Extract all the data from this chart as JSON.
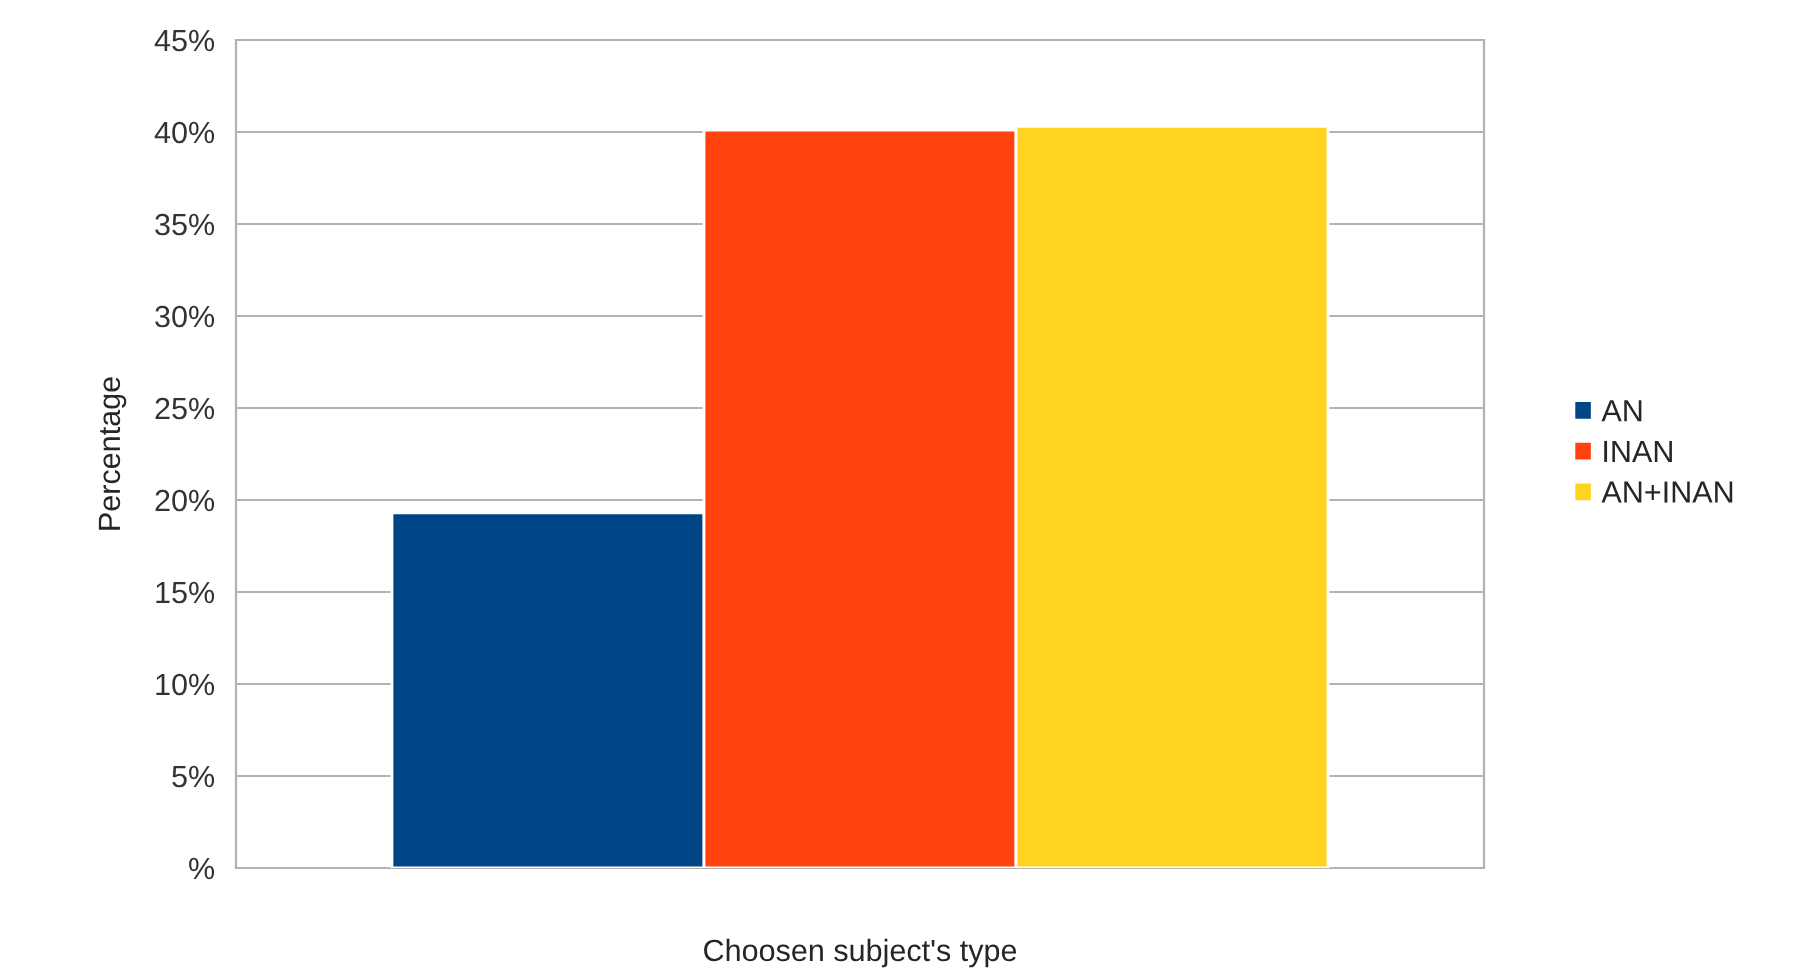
{
  "chart_data": {
    "type": "bar",
    "xlabel": "Choosen subject's type",
    "ylabel": "Percentage",
    "categories": [
      null
    ],
    "series": [
      {
        "name": "AN",
        "color": "#004586",
        "values": [
          19.3
        ]
      },
      {
        "name": "INAN",
        "color": "#ff420e",
        "values": [
          40.1
        ]
      },
      {
        "name": "AN+INAN",
        "color": "#ffd320",
        "values": [
          40.3
        ]
      }
    ],
    "ylim": [
      0,
      45
    ],
    "yticks": [
      {
        "value": 0,
        "label": "%"
      },
      {
        "value": 5,
        "label": "5%"
      },
      {
        "value": 10,
        "label": "10%"
      },
      {
        "value": 15,
        "label": "15%"
      },
      {
        "value": 20,
        "label": "20%"
      },
      {
        "value": 25,
        "label": "25%"
      },
      {
        "value": 30,
        "label": "30%"
      },
      {
        "value": 35,
        "label": "35%"
      },
      {
        "value": 40,
        "label": "40%"
      },
      {
        "value": 45,
        "label": "45%"
      }
    ],
    "grid": "y",
    "legend": "right"
  }
}
